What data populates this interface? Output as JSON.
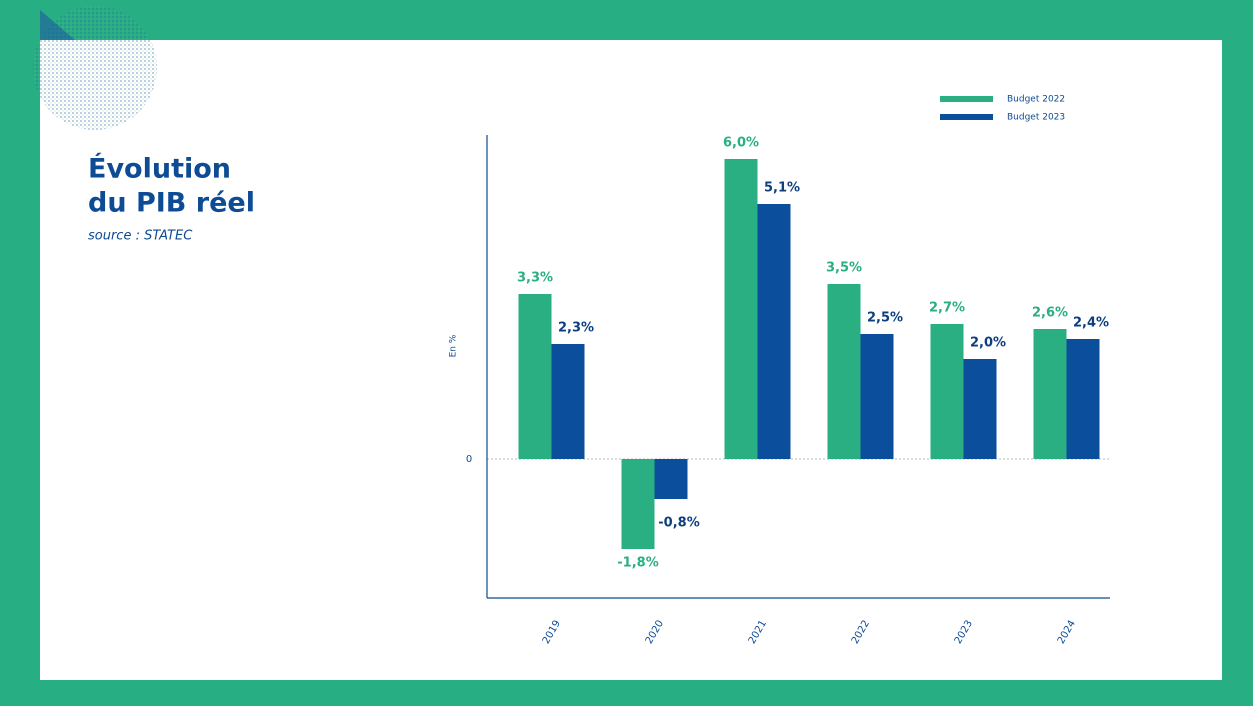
{
  "chart_data": {
    "type": "bar",
    "title": [
      "Évolution",
      "du PIB réel"
    ],
    "subtitle": "source : STATEC",
    "y_label": "En %",
    "categories": [
      "2019",
      "2020",
      "2021",
      "2022",
      "2023",
      "2024"
    ],
    "series": [
      {
        "name": "Budget 2022",
        "color": "#2aaf82",
        "values": [
          3.3,
          -1.8,
          6.0,
          3.5,
          2.7,
          2.6
        ],
        "value_labels": [
          "3,3%",
          "-1,8%",
          "6,0%",
          "3,5%",
          "2,7%",
          "2,6%"
        ]
      },
      {
        "name": "Budget 2023",
        "color": "#0b4f9c",
        "values": [
          2.3,
          -0.8,
          5.1,
          2.5,
          2.0,
          2.4
        ],
        "value_labels": [
          "2,3%",
          "-0,8%",
          "5,1%",
          "2,5%",
          "2,0%",
          "2,4%"
        ]
      }
    ],
    "ylim": [
      -2.78,
      6.48
    ],
    "yticks": [
      0
    ],
    "legend": "top-right"
  }
}
